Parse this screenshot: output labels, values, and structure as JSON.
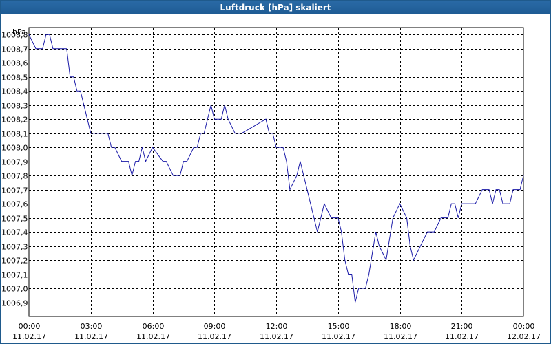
{
  "window": {
    "title": "Luftdruck [hPa] skaliert"
  },
  "chart_data": {
    "type": "line",
    "title": "Luftdruck [hPa] skaliert",
    "unit_label": "hPa",
    "ylim": [
      1006.8,
      1008.85
    ],
    "xlim_minutes": [
      0,
      1440
    ],
    "grid": true,
    "colors": {
      "line": "#1a1aa8",
      "grid": "#000000",
      "title_bar": "#1e5b93"
    },
    "y_ticks": [
      1008.8,
      1008.7,
      1008.6,
      1008.5,
      1008.4,
      1008.3,
      1008.2,
      1008.1,
      1008.0,
      1007.9,
      1007.8,
      1007.7,
      1007.6,
      1007.5,
      1007.4,
      1007.3,
      1007.2,
      1007.1,
      1007.0,
      1006.9
    ],
    "y_tick_labels": [
      "1008,8",
      "1008,7",
      "1008,6",
      "1008,5",
      "1008,4",
      "1008,3",
      "1008,2",
      "1008,1",
      "1008,0",
      "1007,9",
      "1007,8",
      "1007,7",
      "1007,6",
      "1007,5",
      "1007,4",
      "1007,3",
      "1007,2",
      "1007,1",
      "1007,0",
      "1006,9"
    ],
    "x_ticks": [
      {
        "time": "00:00",
        "date": "11.02.17"
      },
      {
        "time": "03:00",
        "date": "11.02.17"
      },
      {
        "time": "06:00",
        "date": "11.02.17"
      },
      {
        "time": "09:00",
        "date": "11.02.17"
      },
      {
        "time": "12:00",
        "date": "11.02.17"
      },
      {
        "time": "15:00",
        "date": "11.02.17"
      },
      {
        "time": "18:00",
        "date": "11.02.17"
      },
      {
        "time": "21:00",
        "date": "11.02.17"
      },
      {
        "time": "00:00",
        "date": "12.02.17"
      }
    ],
    "series": [
      {
        "x": [
          "11.02.17 00:00",
          "11.02.17 00:20",
          "11.02.17 00:40",
          "11.02.17 00:50",
          "11.02.17 01:00",
          "11.02.17 01:10",
          "11.02.17 01:50",
          "11.02.17 02:00",
          "11.02.17 02:10",
          "11.02.17 02:20",
          "11.02.17 02:30",
          "11.02.17 02:40",
          "11.02.17 03:00",
          "11.02.17 03:50",
          "11.02.17 04:00",
          "11.02.17 04:10",
          "11.02.17 04:30",
          "11.02.17 04:50",
          "11.02.17 05:00",
          "11.02.17 05:10",
          "11.02.17 05:20",
          "11.02.17 05:30",
          "11.02.17 05:40",
          "11.02.17 06:00",
          "11.02.17 06:30",
          "11.02.17 06:40",
          "11.02.17 07:00",
          "11.02.17 07:10",
          "11.02.17 07:20",
          "11.02.17 07:30",
          "11.02.17 07:40",
          "11.02.17 08:00",
          "11.02.17 08:10",
          "11.02.17 08:20",
          "11.02.17 08:30",
          "11.02.17 08:50",
          "11.02.17 09:00",
          "11.02.17 09:10",
          "11.02.17 09:20",
          "11.02.17 09:30",
          "11.02.17 09:40",
          "11.02.17 10:00",
          "11.02.17 10:10",
          "11.02.17 10:20",
          "11.02.17 11:30",
          "11.02.17 11:40",
          "11.02.17 11:50",
          "11.02.17 12:00",
          "11.02.17 12:20",
          "11.02.17 12:30",
          "11.02.17 12:40",
          "11.02.17 13:00",
          "11.02.17 13:10",
          "11.02.17 13:20",
          "11.02.17 13:40",
          "11.02.17 14:00",
          "11.02.17 14:10",
          "11.02.17 14:20",
          "11.02.17 14:40",
          "11.02.17 15:00",
          "11.02.17 15:10",
          "11.02.17 15:20",
          "11.02.17 15:30",
          "11.02.17 15:40",
          "11.02.17 15:50",
          "11.02.17 16:00",
          "11.02.17 16:10",
          "11.02.17 16:20",
          "11.02.17 16:30",
          "11.02.17 16:50",
          "11.02.17 17:00",
          "11.02.17 17:20",
          "11.02.17 17:40",
          "11.02.17 18:00",
          "11.02.17 18:20",
          "11.02.17 18:30",
          "11.02.17 18:40",
          "11.02.17 19:00",
          "11.02.17 19:20",
          "11.02.17 19:40",
          "11.02.17 20:00",
          "11.02.17 20:20",
          "11.02.17 20:30",
          "11.02.17 20:40",
          "11.02.17 20:50",
          "11.02.17 21:00",
          "11.02.17 21:20",
          "11.02.17 21:40",
          "11.02.17 22:00",
          "11.02.17 22:10",
          "11.02.17 22:20",
          "11.02.17 22:30",
          "11.02.17 22:40",
          "11.02.17 22:50",
          "11.02.17 23:00",
          "11.02.17 23:10",
          "11.02.17 23:20",
          "11.02.17 23:30",
          "11.02.17 23:40",
          "11.02.17 23:50",
          "12.02.17 00:00"
        ],
        "y": [
          1008.8,
          1008.7,
          1008.7,
          1008.8,
          1008.8,
          1008.7,
          1008.7,
          1008.5,
          1008.5,
          1008.4,
          1008.4,
          1008.3,
          1008.1,
          1008.1,
          1008.0,
          1008.0,
          1007.9,
          1007.9,
          1007.8,
          1007.9,
          1007.9,
          1008.0,
          1007.9,
          1008.0,
          1007.9,
          1007.9,
          1007.8,
          1007.8,
          1007.8,
          1007.9,
          1007.9,
          1008.0,
          1008.0,
          1008.1,
          1008.1,
          1008.3,
          1008.2,
          1008.2,
          1008.2,
          1008.3,
          1008.2,
          1008.1,
          1008.1,
          1008.1,
          1008.2,
          1008.1,
          1008.1,
          1008.0,
          1008.0,
          1007.9,
          1007.7,
          1007.8,
          1007.9,
          1007.8,
          1007.6,
          1007.4,
          1007.5,
          1007.6,
          1007.5,
          1007.5,
          1007.4,
          1007.2,
          1007.1,
          1007.1,
          1006.9,
          1007.0,
          1007.0,
          1007.0,
          1007.1,
          1007.4,
          1007.3,
          1007.2,
          1007.5,
          1007.6,
          1007.5,
          1007.3,
          1007.2,
          1007.3,
          1007.4,
          1007.4,
          1007.5,
          1007.5,
          1007.6,
          1007.6,
          1007.5,
          1007.6,
          1007.6,
          1007.6,
          1007.7,
          1007.7,
          1007.7,
          1007.6,
          1007.7,
          1007.7,
          1007.6,
          1007.6,
          1007.6,
          1007.7,
          1007.7,
          1007.7,
          1007.8
        ]
      }
    ]
  }
}
